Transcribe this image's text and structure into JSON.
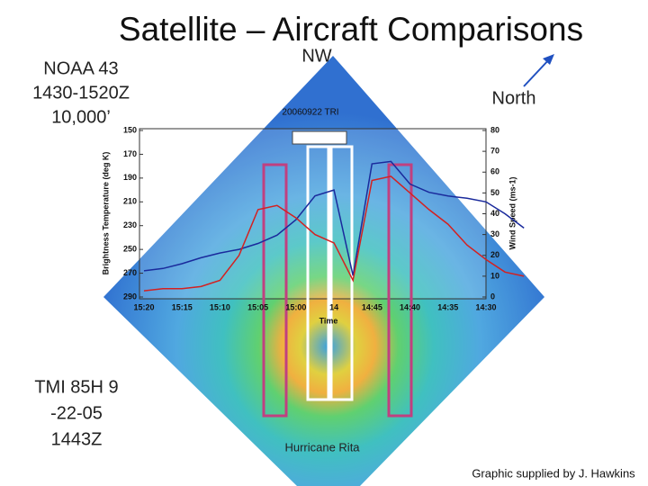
{
  "slide": {
    "title": "Satellite – Aircraft Comparisons",
    "left_top": [
      "NOAA 43",
      "1430-1520Z",
      "10,000’"
    ],
    "left_bottom": [
      "TMI 85H 9",
      "-22-05",
      "1443Z"
    ],
    "nw": "NW",
    "north": "North",
    "storm": "Hurricane Rita",
    "credit": "Graphic supplied by J. Hawkins"
  },
  "chart_data": {
    "type": "line",
    "title": "20060922 TRI",
    "x_label": "Time",
    "y_label": "Brightness Temperature (deg K)",
    "y2_label": "Wind Speed (ms-1)",
    "categories": [
      "15:20",
      null,
      "15:15",
      null,
      "15:10",
      null,
      "15:05",
      null,
      "15:00",
      null,
      "14",
      null,
      "14:45",
      null,
      "14:40",
      null,
      "14:35",
      null,
      "14:30",
      null,
      null
    ],
    "ylim": [
      290,
      150
    ],
    "yticks": [
      150,
      170,
      190,
      210,
      230,
      250,
      270,
      290
    ],
    "y2lim": [
      0,
      80
    ],
    "y2ticks": [
      0,
      10,
      20,
      30,
      40,
      50,
      60,
      70,
      80
    ],
    "series": [
      {
        "color": "#1a2a9c",
        "values": [
          268,
          266,
          262,
          257,
          253,
          250,
          245,
          238,
          225,
          205,
          200,
          272,
          178,
          176,
          195,
          202,
          205,
          207,
          210,
          220,
          232
        ]
      },
      {
        "color": "#d42020",
        "axis": "y2",
        "values": [
          3,
          4,
          4,
          5,
          8,
          20,
          42,
          44,
          38,
          30,
          26,
          8,
          56,
          58,
          50,
          42,
          35,
          25,
          18,
          12,
          10
        ]
      }
    ]
  }
}
